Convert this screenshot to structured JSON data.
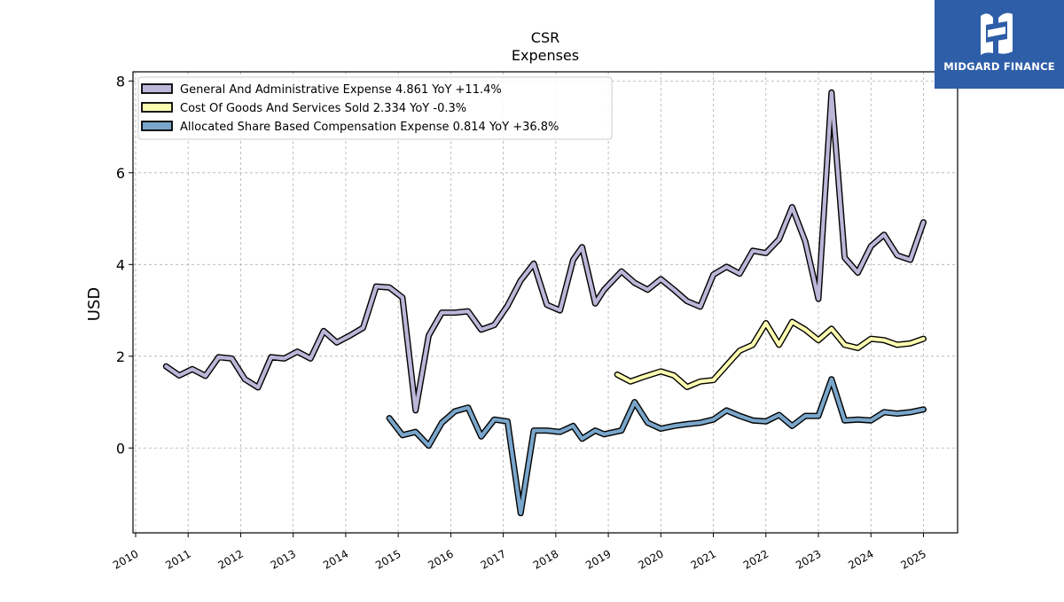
{
  "chart_data": {
    "type": "line",
    "title": "CSR",
    "subtitle": "Expenses",
    "ylabel": "USD",
    "xlabel": "",
    "xlim": [
      2009.95,
      2025.65
    ],
    "ylim": [
      -1.85,
      8.2
    ],
    "yticks": [
      0,
      2,
      4,
      6,
      8
    ],
    "xticks": [
      2010,
      2011,
      2012,
      2013,
      2014,
      2015,
      2016,
      2017,
      2018,
      2019,
      2020,
      2021,
      2022,
      2023,
      2024,
      2025
    ],
    "grid": true,
    "legend_position": "top-left",
    "series": [
      {
        "name": "General And Administrative Expense",
        "legend": "General And Administrative Expense  4.861 YoY +11.4%",
        "color": "#bcb6d8",
        "points": [
          [
            2010.58,
            1.78
          ],
          [
            2010.83,
            1.58
          ],
          [
            2011.08,
            1.72
          ],
          [
            2011.33,
            1.57
          ],
          [
            2011.58,
            1.98
          ],
          [
            2011.83,
            1.95
          ],
          [
            2012.08,
            1.5
          ],
          [
            2012.33,
            1.32
          ],
          [
            2012.58,
            1.98
          ],
          [
            2012.83,
            1.95
          ],
          [
            2013.08,
            2.1
          ],
          [
            2013.33,
            1.95
          ],
          [
            2013.58,
            2.55
          ],
          [
            2013.83,
            2.3
          ],
          [
            2014.08,
            2.45
          ],
          [
            2014.33,
            2.62
          ],
          [
            2014.58,
            3.52
          ],
          [
            2014.83,
            3.5
          ],
          [
            2015.08,
            3.28
          ],
          [
            2015.33,
            0.82
          ],
          [
            2015.58,
            2.45
          ],
          [
            2015.83,
            2.95
          ],
          [
            2016.08,
            2.95
          ],
          [
            2016.33,
            2.98
          ],
          [
            2016.58,
            2.58
          ],
          [
            2016.83,
            2.68
          ],
          [
            2017.08,
            3.1
          ],
          [
            2017.33,
            3.65
          ],
          [
            2017.58,
            4.02
          ],
          [
            2017.83,
            3.12
          ],
          [
            2018.08,
            3.0
          ],
          [
            2018.33,
            4.1
          ],
          [
            2018.5,
            4.38
          ],
          [
            2018.75,
            3.15
          ],
          [
            2018.92,
            3.45
          ],
          [
            2019.25,
            3.85
          ],
          [
            2019.5,
            3.6
          ],
          [
            2019.75,
            3.45
          ],
          [
            2020.0,
            3.68
          ],
          [
            2020.25,
            3.45
          ],
          [
            2020.5,
            3.2
          ],
          [
            2020.75,
            3.08
          ],
          [
            2021.0,
            3.78
          ],
          [
            2021.25,
            3.95
          ],
          [
            2021.5,
            3.8
          ],
          [
            2021.75,
            4.3
          ],
          [
            2022.0,
            4.25
          ],
          [
            2022.25,
            4.55
          ],
          [
            2022.5,
            5.25
          ],
          [
            2022.75,
            4.5
          ],
          [
            2023.0,
            3.25
          ],
          [
            2023.25,
            7.75
          ],
          [
            2023.5,
            4.15
          ],
          [
            2023.75,
            3.82
          ],
          [
            2024.0,
            4.4
          ],
          [
            2024.25,
            4.65
          ],
          [
            2024.5,
            4.2
          ],
          [
            2024.75,
            4.1
          ],
          [
            2025.0,
            4.92
          ]
        ]
      },
      {
        "name": "Cost Of Goods And Services Sold",
        "legend": "Cost Of Goods And Services Sold  2.334 YoY -0.3%",
        "color": "#fdfdb1",
        "points": [
          [
            2019.17,
            1.6
          ],
          [
            2019.42,
            1.45
          ],
          [
            2019.67,
            1.55
          ],
          [
            2020.0,
            1.67
          ],
          [
            2020.25,
            1.58
          ],
          [
            2020.5,
            1.33
          ],
          [
            2020.75,
            1.45
          ],
          [
            2021.0,
            1.48
          ],
          [
            2021.25,
            1.8
          ],
          [
            2021.5,
            2.12
          ],
          [
            2021.75,
            2.25
          ],
          [
            2022.0,
            2.72
          ],
          [
            2022.25,
            2.25
          ],
          [
            2022.5,
            2.75
          ],
          [
            2022.75,
            2.58
          ],
          [
            2023.0,
            2.35
          ],
          [
            2023.25,
            2.6
          ],
          [
            2023.5,
            2.25
          ],
          [
            2023.75,
            2.18
          ],
          [
            2024.0,
            2.38
          ],
          [
            2024.25,
            2.35
          ],
          [
            2024.5,
            2.25
          ],
          [
            2024.75,
            2.28
          ],
          [
            2025.0,
            2.38
          ]
        ]
      },
      {
        "name": "Allocated Share Based Compensation Expense",
        "legend": "Allocated Share Based Compensation Expense  0.814 YoY +36.8%",
        "color": "#7aa6cb",
        "points": [
          [
            2014.83,
            0.65
          ],
          [
            2015.08,
            0.28
          ],
          [
            2015.33,
            0.35
          ],
          [
            2015.58,
            0.05
          ],
          [
            2015.83,
            0.55
          ],
          [
            2016.08,
            0.8
          ],
          [
            2016.33,
            0.88
          ],
          [
            2016.58,
            0.25
          ],
          [
            2016.83,
            0.62
          ],
          [
            2017.08,
            0.58
          ],
          [
            2017.33,
            -1.42
          ],
          [
            2017.58,
            0.38
          ],
          [
            2017.83,
            0.38
          ],
          [
            2018.08,
            0.35
          ],
          [
            2018.33,
            0.48
          ],
          [
            2018.5,
            0.2
          ],
          [
            2018.75,
            0.38
          ],
          [
            2018.92,
            0.3
          ],
          [
            2019.25,
            0.38
          ],
          [
            2019.5,
            1.0
          ],
          [
            2019.75,
            0.55
          ],
          [
            2020.0,
            0.42
          ],
          [
            2020.25,
            0.48
          ],
          [
            2020.5,
            0.52
          ],
          [
            2020.75,
            0.55
          ],
          [
            2021.0,
            0.62
          ],
          [
            2021.25,
            0.82
          ],
          [
            2021.5,
            0.7
          ],
          [
            2021.75,
            0.6
          ],
          [
            2022.0,
            0.58
          ],
          [
            2022.25,
            0.72
          ],
          [
            2022.5,
            0.48
          ],
          [
            2022.75,
            0.7
          ],
          [
            2023.0,
            0.7
          ],
          [
            2023.25,
            1.5
          ],
          [
            2023.5,
            0.6
          ],
          [
            2023.75,
            0.62
          ],
          [
            2024.0,
            0.6
          ],
          [
            2024.25,
            0.78
          ],
          [
            2024.5,
            0.75
          ],
          [
            2024.75,
            0.78
          ],
          [
            2025.0,
            0.84
          ]
        ]
      }
    ]
  },
  "brand": {
    "name": "MIDGARD FINANCE",
    "color": "#2f5ea8"
  }
}
